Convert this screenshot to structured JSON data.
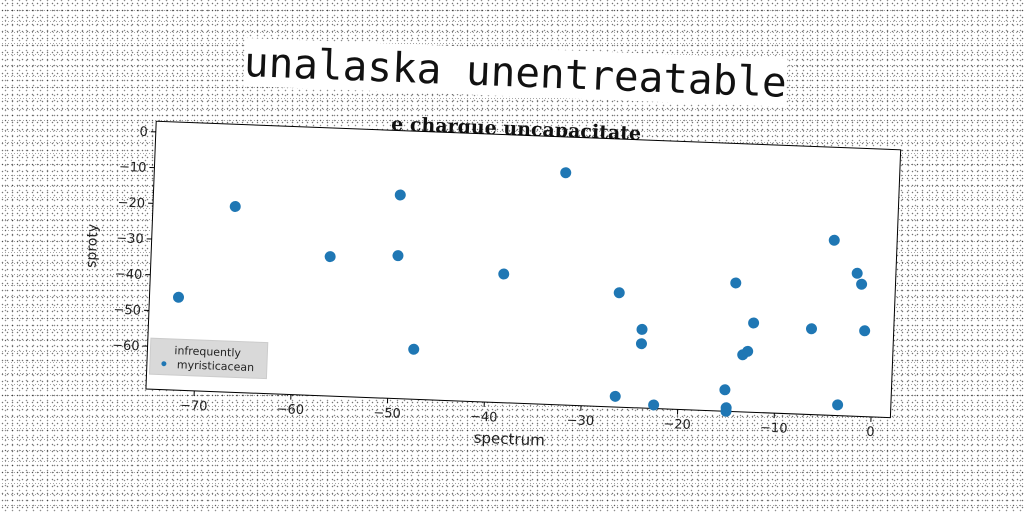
{
  "title": "unalaska unentreatable",
  "chart_data": {
    "type": "scatter",
    "title": "e charque uncapacitate",
    "xlabel": "spectrum",
    "ylabel": "sproty",
    "xlim": [
      -75,
      2
    ],
    "ylim": [
      -72,
      3
    ],
    "xticks": [
      -70,
      -60,
      -50,
      -40,
      -30,
      -20,
      -10,
      0
    ],
    "yticks": [
      0,
      -10,
      -20,
      -30,
      -40,
      -50,
      -60
    ],
    "xtick_labels": [
      "−70",
      "−60",
      "−50",
      "−40",
      "−30",
      "−20",
      "−10",
      "0"
    ],
    "ytick_labels": [
      "0",
      "−10",
      "−20",
      "−30",
      "−40",
      "−50",
      "−60"
    ],
    "grid": false,
    "legend_position": "lower-left",
    "legend": [
      "infrequently",
      "myristicacean"
    ],
    "marker_color": "#1f77b4",
    "series": [
      {
        "name": "infrequently",
        "x": [
          -32.5,
          -66.5,
          -49.5,
          -72,
          -56.5,
          -49.5,
          -38.5,
          -26.5,
          -24,
          -24,
          -47.5,
          -26.5,
          -22.5,
          -15,
          -15,
          -15.2,
          -14.5,
          -13.5,
          -13,
          -12.5,
          -6.5,
          -4.5,
          -2,
          -1.5,
          -1,
          -3.5
        ],
        "y": [
          -7,
          -20,
          -15,
          -46,
          -33,
          -32,
          -36,
          -40,
          -50,
          -54,
          -58,
          -69,
          -71,
          -71,
          -72,
          -66,
          -36,
          -56,
          -55,
          -47,
          -48,
          -23,
          -32,
          -35,
          -48,
          -69
        ]
      },
      {
        "name": "myristicacean",
        "x": [],
        "y": []
      }
    ]
  }
}
